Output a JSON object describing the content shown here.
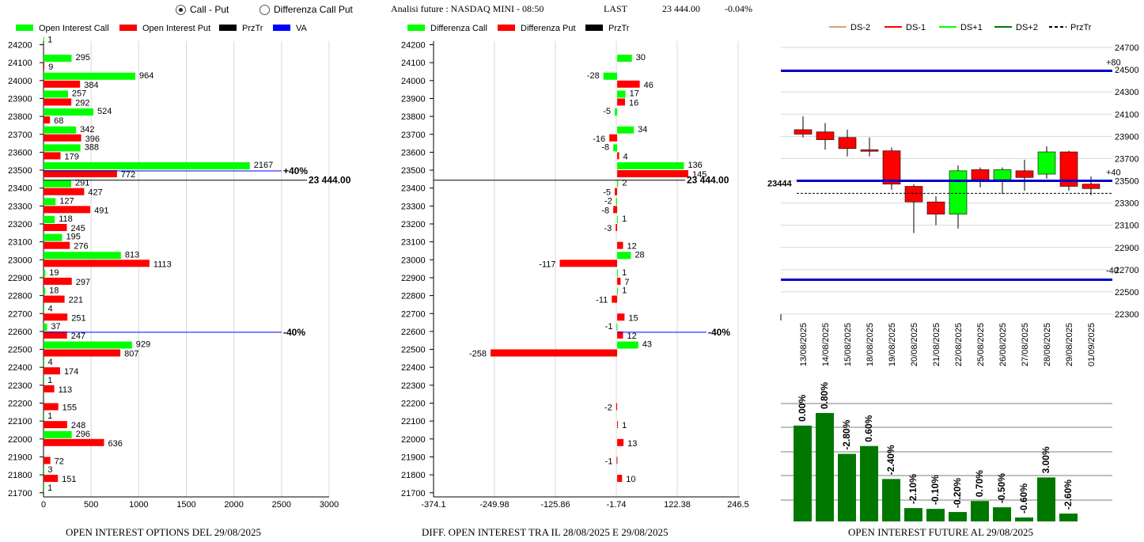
{
  "header": {
    "radio_call_put": "Call - Put",
    "radio_diff": "Differenza Call Put",
    "title": "Analisi future : NASDAQ MINI - 08:50",
    "last_label": "LAST",
    "last_value": "23 444.00",
    "change": "-0.04%"
  },
  "colors": {
    "green": "#00ff00",
    "red": "#ff0000",
    "black": "#000000",
    "blue": "#0000ff",
    "darkgreen": "#007800",
    "tan": "#e0a070",
    "bluebar": "#0000c8"
  },
  "chart_data": [
    {
      "type": "bar",
      "title": "OPEN INTEREST OPTIONS DEL 29/08/2025",
      "legend": [
        "Open Interest Call",
        "Open Interest Put",
        "PrzTr",
        "VA"
      ],
      "strikes": [
        24200,
        24100,
        24000,
        23900,
        23800,
        23700,
        23600,
        23500,
        23400,
        23300,
        23200,
        23100,
        23000,
        22900,
        22800,
        22700,
        22600,
        22500,
        22400,
        22300,
        22200,
        22100,
        22000,
        21900,
        21800,
        21700
      ],
      "call": [
        1,
        295,
        964,
        257,
        524,
        342,
        388,
        2167,
        291,
        127,
        118,
        195,
        813,
        19,
        18,
        4,
        37,
        929,
        4,
        1,
        null,
        1,
        296,
        null,
        3,
        1
      ],
      "put": [
        null,
        9,
        384,
        292,
        68,
        396,
        179,
        772,
        427,
        491,
        245,
        276,
        1113,
        297,
        221,
        251,
        247,
        807,
        174,
        113,
        155,
        248,
        636,
        72,
        151,
        null
      ],
      "xticks": [
        0,
        500,
        1000,
        1500,
        2000,
        2500,
        3000
      ],
      "xlim": [
        0,
        3000
      ],
      "price": 23444,
      "price_label": "23 444.00",
      "va_upper": {
        "strike": 23500,
        "label": "+40%"
      },
      "va_lower": {
        "strike": 22600,
        "label": "-40%"
      }
    },
    {
      "type": "bar",
      "title": "DIFF. OPEN INTEREST TRA IL 28/08/2025 E 29/08/2025",
      "legend": [
        "Differenza Call",
        "Differenza Put",
        "PrzTr"
      ],
      "strikes": [
        24200,
        24100,
        24000,
        23900,
        23800,
        23700,
        23600,
        23500,
        23400,
        23300,
        23200,
        23100,
        23000,
        22900,
        22800,
        22700,
        22600,
        22500,
        22400,
        22300,
        22200,
        22100,
        22000,
        21900,
        21800,
        21700
      ],
      "call": [
        null,
        30,
        -28,
        17,
        -5,
        34,
        -8,
        136,
        2,
        -2,
        1,
        null,
        28,
        1,
        1,
        null,
        -1,
        43,
        null,
        null,
        null,
        null,
        null,
        null,
        null,
        null
      ],
      "put": [
        null,
        null,
        46,
        16,
        null,
        -16,
        4,
        145,
        -5,
        -8,
        -3,
        12,
        -117,
        7,
        -11,
        15,
        12,
        -258,
        null,
        null,
        -2,
        1,
        13,
        -1,
        10,
        null
      ],
      "xticks": [
        -374.1,
        -249.98,
        -125.86,
        -1.74,
        122.38,
        246.5
      ],
      "xlim": [
        -374.1,
        246.5
      ],
      "price": 23444,
      "price_label": "23 444.00",
      "va_lower": {
        "strike": 22600,
        "label": "-40%"
      }
    },
    {
      "type": "candlestick",
      "legend": [
        "DS-2",
        "DS-1",
        "DS+1",
        "DS+2",
        "PrzTr"
      ],
      "dates": [
        "13/08/2025",
        "14/08/2025",
        "15/08/2025",
        "18/08/2025",
        "19/08/2025",
        "20/08/2025",
        "21/08/2025",
        "22/08/2025",
        "25/08/2025",
        "26/08/2025",
        "27/08/2025",
        "28/08/2025",
        "29/08/2025",
        "01/09/2025"
      ],
      "candles": [
        {
          "o": 23960,
          "h": 24080,
          "l": 23890,
          "c": 23920
        },
        {
          "o": 23940,
          "h": 24020,
          "l": 23780,
          "c": 23870
        },
        {
          "o": 23890,
          "h": 23960,
          "l": 23720,
          "c": 23790
        },
        {
          "o": 23780,
          "h": 23890,
          "l": 23720,
          "c": 23770
        },
        {
          "o": 23770,
          "h": 23800,
          "l": 23420,
          "c": 23470
        },
        {
          "o": 23450,
          "h": 23470,
          "l": 23030,
          "c": 23310
        },
        {
          "o": 23310,
          "h": 23360,
          "l": 23100,
          "c": 23200
        },
        {
          "o": 23200,
          "h": 23640,
          "l": 23070,
          "c": 23590
        },
        {
          "o": 23600,
          "h": 23620,
          "l": 23440,
          "c": 23510
        },
        {
          "o": 23510,
          "h": 23620,
          "l": 23380,
          "c": 23600
        },
        {
          "o": 23590,
          "h": 23690,
          "l": 23410,
          "c": 23530
        },
        {
          "o": 23560,
          "h": 23810,
          "l": 23520,
          "c": 23760
        },
        {
          "o": 23760,
          "h": 23770,
          "l": 23410,
          "c": 23450
        },
        {
          "o": 23470,
          "h": 23540,
          "l": 23370,
          "c": 23430
        }
      ],
      "yticks": [
        24700,
        24500,
        24300,
        24100,
        23900,
        23700,
        23500,
        23300,
        23100,
        22900,
        22700,
        22500,
        22300
      ],
      "ylim": [
        22300,
        24700
      ],
      "price": 23444,
      "price_label": "23444",
      "upper_level": {
        "value": 24490,
        "label": "+80"
      },
      "mid_level": {
        "value": 23500,
        "label": "+40"
      },
      "lower_level": {
        "value": 22610,
        "label": "-40"
      }
    },
    {
      "type": "bar",
      "title": "OPEN INTEREST FUTURE AL 29/08/2025",
      "labels": [
        "0.00%",
        "0.80%",
        "-2.80%",
        "0.60%",
        "-2.40%",
        "-2.10%",
        "-0.10%",
        "-0.20%",
        "0.70%",
        "-0.50%",
        "-0.60%",
        "3.00%",
        "-2.60%"
      ],
      "values": [
        122,
        138,
        86,
        96,
        54,
        17,
        16,
        12,
        26,
        18,
        5,
        56,
        10
      ]
    }
  ]
}
